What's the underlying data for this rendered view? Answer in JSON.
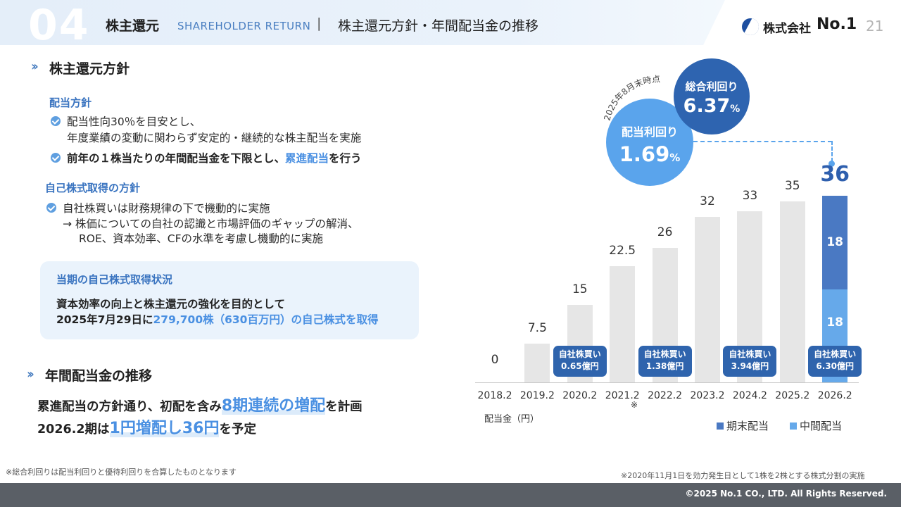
{
  "header": {
    "section_number": "04",
    "title": "株主還元",
    "subtitle": "SHAREHOLDER RETURN",
    "separator": "|",
    "topic": "株主還元方針・年間配当金の推移",
    "logo_text": "株式会社",
    "logo_no": "No.1",
    "page_number": "21"
  },
  "policy": {
    "title": "株主還元方針",
    "dividend_policy": {
      "heading": "配当方針",
      "item1_line1": "配当性向30％を目安とし、",
      "item1_line2": "年度業績の変動に関わらず安定的・継続的な株主配当を実施",
      "item2_pre": "前年の１株当たりの年間配当金を下限とし、",
      "item2_hl": "累進配当",
      "item2_post": "を行う"
    },
    "buyback_policy": {
      "heading": "自己株式取得の方針",
      "item1": "自社株買いは財務規律の下で機動的に実施",
      "item1_sub1": "→ 株価についての自社の認識と市場評価のギャップの解消、",
      "item1_sub2": "ROE、資本効率、CFの水準を考慮し機動的に実施"
    },
    "current_box": {
      "heading": "当期の自己株式取得状況",
      "line1": "資本効率の向上と株主還元の強化を目的として",
      "line2_pre": "2025年7月29日に",
      "line2_hl": "279,700株（630百万円）の自己株式を取得"
    }
  },
  "trend": {
    "title": "年間配当金の推移",
    "line1_pre": "累進配当の方針通り、初配を含み",
    "line1_hl": "8期連続の増配",
    "line1_post": "を計画",
    "line2_pre": "2026.2期は",
    "line2_hl": "1円増配し36円",
    "line2_post": "を予定"
  },
  "yield": {
    "as_of": "2025年8月末時点",
    "dividend_yield_label": "配当利回り",
    "dividend_yield_value": "1.69",
    "total_yield_label": "総合利回り",
    "total_yield_value": "6.37",
    "unit": "%"
  },
  "chart_data": {
    "type": "bar",
    "unit_label": "配当金（円）",
    "categories": [
      "2018.2",
      "2019.2",
      "2020.2",
      "2021.2",
      "2022.2",
      "2023.2",
      "2024.2",
      "2025.2",
      "2026.2"
    ],
    "values": [
      0,
      7.5,
      15,
      22.5,
      26,
      32,
      33,
      35,
      36
    ],
    "value_labels": [
      "0",
      "7.5",
      "15",
      "22.5",
      "26",
      "32",
      "33",
      "35",
      "36"
    ],
    "category_note": {
      "category": "2021.2",
      "mark": "※"
    },
    "series": [
      {
        "name": "期末配当",
        "values": [
          null,
          null,
          null,
          null,
          null,
          null,
          null,
          null,
          18
        ]
      },
      {
        "name": "中間配当",
        "values": [
          null,
          null,
          null,
          null,
          null,
          null,
          null,
          null,
          18
        ]
      }
    ],
    "stack_labels": [
      "18",
      "18"
    ],
    "ylim": [
      0,
      36
    ],
    "buybacks": [
      {
        "category": "2020.2",
        "line1": "自社株買い",
        "line2": "0.65億円"
      },
      {
        "category": "2022.2",
        "line1": "自社株買い",
        "line2": "1.38億円"
      },
      {
        "category": "2024.2",
        "line1": "自社株買い",
        "line2": "3.94億円"
      },
      {
        "category": "2026.2",
        "line1": "自社株買い",
        "line2": "6.30億円"
      }
    ],
    "colors": {
      "past": "#e6e6e6",
      "final": "#4a79c3",
      "interim": "#66a9ea"
    }
  },
  "footnotes": {
    "left": "※総合利回りは配当利回りと優待利回りを合算したものとなります",
    "right": "※2020年11月1日を効力発生日として1株を2株とする株式分割の実施"
  },
  "copyright": "©2025 No.1 CO., LTD. All Rights Reserved."
}
